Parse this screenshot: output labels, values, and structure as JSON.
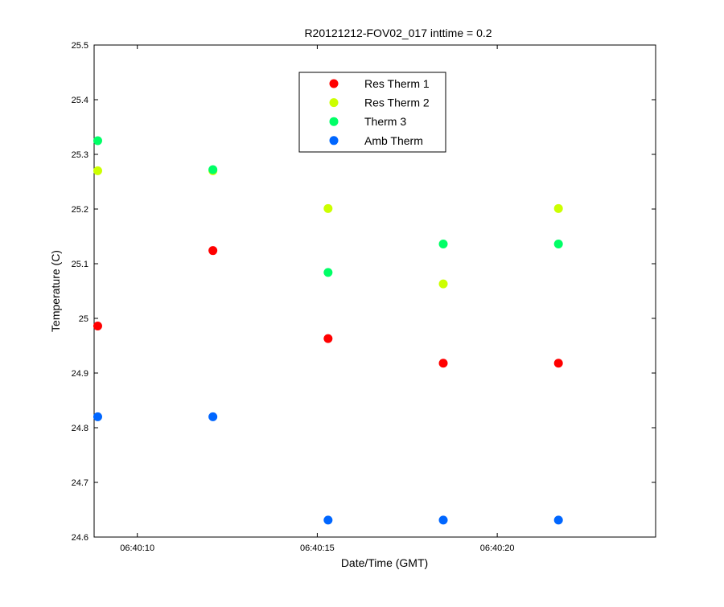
{
  "chart_data": {
    "type": "scatter",
    "title": "R20121212-FOV02_017 inttime = 0.2",
    "xlabel": "Date/Time (GMT)",
    "ylabel": "Temperature (C)",
    "x_axis": {
      "unit": "time (GMT), 06:40:SS",
      "range_seconds": [
        8.8,
        24.4
      ],
      "ticks": [
        {
          "seconds": 10,
          "label": "06:40:10"
        },
        {
          "seconds": 15,
          "label": "06:40:15"
        },
        {
          "seconds": 20,
          "label": "06:40:20"
        }
      ]
    },
    "y_axis": {
      "ylim": [
        24.6,
        25.5
      ],
      "ticks": [
        "24.6",
        "24.7",
        "24.8",
        "24.9",
        "25",
        "25.1",
        "25.2",
        "25.3",
        "25.4",
        "25.5"
      ]
    },
    "x_seconds": [
      8.9,
      12.1,
      15.3,
      18.5,
      21.7
    ],
    "x": [
      "06:40:08.9",
      "06:40:12.1",
      "06:40:15.3",
      "06:40:18.5",
      "06:40:21.7"
    ],
    "series": [
      {
        "name": "Res Therm 1",
        "color": "#ff0000",
        "values": [
          24.986,
          25.124,
          24.963,
          24.918,
          24.918
        ]
      },
      {
        "name": "Res Therm 2",
        "color": "#ccff00",
        "values": [
          25.27,
          25.27,
          25.201,
          25.063,
          25.201
        ]
      },
      {
        "name": "Therm 3",
        "color": "#00ff66",
        "values": [
          25.325,
          25.272,
          25.084,
          25.136,
          25.136
        ]
      },
      {
        "name": "Amb Therm",
        "color": "#0066ff",
        "values": [
          24.82,
          24.82,
          24.631,
          24.631,
          24.631
        ]
      }
    ],
    "grid": false,
    "legend_position": "top-center"
  }
}
